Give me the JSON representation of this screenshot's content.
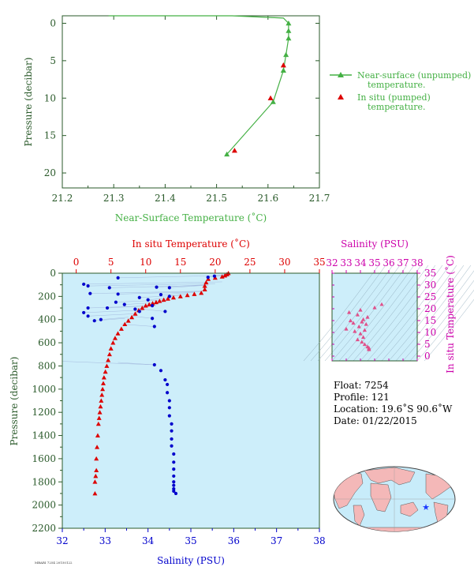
{
  "top_chart": {
    "xlabel": "Near-Surface Temperature (˚C)",
    "ylabel": "Pressure (decibar)",
    "x_ticks": [
      "21.2",
      "21.3",
      "21.4",
      "21.5",
      "21.6",
      "21.7"
    ],
    "y_ticks": [
      "0",
      "5",
      "10",
      "15",
      "20"
    ],
    "legend": {
      "unpumped": [
        "Near-surface (unpumped)",
        "temperature."
      ],
      "pumped": [
        "In situ (pumped)",
        "temperature."
      ]
    },
    "colors": {
      "unpumped": "#44b044",
      "pumped": "#dd0000",
      "axis": "#2a5a2a"
    }
  },
  "main_chart": {
    "top_label": "In situ Temperature (˚C)",
    "bottom_label": "Salinity (PSU)",
    "ylabel": "Pressure (decibar)",
    "temp_ticks": [
      "0",
      "5",
      "10",
      "15",
      "20",
      "25",
      "30",
      "35"
    ],
    "sal_ticks": [
      "32",
      "33",
      "34",
      "35",
      "36",
      "37",
      "38"
    ],
    "pres_ticks": [
      "0",
      "200",
      "400",
      "600",
      "800",
      "1000",
      "1200",
      "1400",
      "1600",
      "1800",
      "2000",
      "2200"
    ],
    "colors": {
      "temperature": "#dd0000",
      "salinity": "#0000cc",
      "background": "#cdeefa"
    }
  },
  "ts_chart": {
    "top_label": "Salinity (PSU)",
    "right_label": "In situ Temperature (˚C)",
    "sal_ticks": [
      "32",
      "33",
      "34",
      "35",
      "36",
      "37",
      "38"
    ],
    "temp_ticks": [
      "0",
      "5",
      "10",
      "15",
      "20",
      "25",
      "30",
      "35"
    ],
    "color": "#cc00aa"
  },
  "info": {
    "float": "Float:  7254",
    "profile": "Profile:  121",
    "location": "Location:  19.6˚S  90.6˚W",
    "date": "Date:  01/22/2015"
  },
  "footer_note": "MBARI 7254 20150122",
  "chart_data": [
    {
      "type": "line",
      "series": [
        {
          "name": "Near-surface (unpumped) temperature.",
          "x": [
            21.29,
            21.53,
            21.63,
            21.64,
            21.64,
            21.64,
            21.635,
            21.63,
            21.63,
            21.61,
            21.52
          ],
          "y": [
            -1.0,
            -1.0,
            -0.7,
            0.0,
            1.0,
            2.0,
            4.2,
            6.3,
            6.3,
            10.5,
            17.5
          ]
        },
        {
          "name": "In situ (pumped) temperature.",
          "x": [
            21.63,
            21.605,
            21.535
          ],
          "y": [
            5.6,
            10.0,
            17.0
          ]
        }
      ],
      "xlim": [
        21.2,
        21.7
      ],
      "ylim": [
        22,
        -1
      ],
      "xlabel": "Near-Surface Temperature (˚C)",
      "ylabel": "Pressure (decibar)"
    },
    {
      "type": "scatter",
      "series": [
        {
          "name": "In situ Temperature (˚C)",
          "temperature": [
            21.9,
            21.7,
            21.4,
            21.0,
            20.0,
            19.0,
            18.7,
            18.5,
            18.5,
            18.0,
            17.0,
            16.0,
            15.0,
            14.0,
            13.2,
            12.6,
            12.0,
            11.5,
            11.0,
            10.5,
            10.0,
            9.5,
            9.0,
            8.5,
            8.0,
            7.5,
            7.0,
            6.5,
            6.0,
            5.6,
            5.3,
            5.0,
            4.8,
            4.6,
            4.4,
            4.2,
            4.0,
            3.9,
            3.8,
            3.7,
            3.6,
            3.5,
            3.4,
            3.3,
            3.2,
            3.1,
            3.0,
            2.9,
            2.9,
            2.8,
            2.7,
            2.7
          ],
          "pressure": [
            0,
            10,
            20,
            30,
            40,
            50,
            80,
            110,
            140,
            170,
            180,
            190,
            200,
            210,
            220,
            230,
            240,
            250,
            260,
            270,
            280,
            300,
            320,
            350,
            380,
            410,
            440,
            480,
            520,
            560,
            600,
            650,
            700,
            750,
            800,
            850,
            900,
            950,
            1000,
            1050,
            1100,
            1150,
            1200,
            1250,
            1300,
            1400,
            1500,
            1600,
            1700,
            1750,
            1800,
            1900
          ]
        },
        {
          "name": "Salinity (PSU)",
          "salinity": [
            35.55,
            35.4,
            33.3,
            32.5,
            32.6,
            33.1,
            34.2,
            34.5,
            32.65,
            33.3,
            34.3,
            34.5,
            33.8,
            34.0,
            33.25,
            33.45,
            34.1,
            32.6,
            33.05,
            33.7,
            33.8,
            34.4,
            32.5,
            32.6,
            34.1,
            32.9,
            32.75,
            34.15,
            34.15,
            34.3,
            34.4,
            34.45,
            34.45,
            34.5,
            34.5,
            34.5,
            34.55,
            34.55,
            34.55,
            34.55,
            34.6,
            34.6,
            34.6,
            34.6,
            34.6,
            34.6,
            34.6,
            34.6,
            34.65
          ],
          "pressure": [
            25,
            35,
            40,
            95,
            110,
            125,
            120,
            125,
            175,
            180,
            185,
            200,
            210,
            230,
            250,
            270,
            280,
            300,
            300,
            310,
            330,
            330,
            340,
            370,
            390,
            400,
            410,
            460,
            790,
            840,
            920,
            960,
            1030,
            1100,
            1160,
            1230,
            1300,
            1360,
            1430,
            1490,
            1560,
            1630,
            1690,
            1750,
            1800,
            1830,
            1860,
            1880,
            1900
          ]
        }
      ],
      "ylim": [
        2200,
        0
      ],
      "temp_lim": [
        -2,
        35
      ],
      "sal_lim": [
        32,
        38
      ],
      "xlabel": "Salinity (PSU)",
      "ylabel": "Pressure (decibar)"
    },
    {
      "type": "scatter",
      "series": [
        {
          "name": "T-S",
          "salinity": [
            35.5,
            35.0,
            34.0,
            33.2,
            33.8,
            34.5,
            34.2,
            33.3,
            34.1,
            33.5,
            34.4,
            33.9,
            33.0,
            34.3,
            33.6,
            34.0,
            34.2,
            33.8,
            34.1,
            34.3,
            34.5,
            34.6,
            34.6,
            34.6
          ],
          "temperature": [
            21.9,
            20.5,
            19.5,
            18.5,
            17.5,
            16.5,
            15.5,
            15.0,
            14.5,
            14.0,
            13.5,
            12.5,
            11.5,
            11.0,
            10.5,
            9.5,
            8.0,
            7.0,
            6.0,
            5.0,
            4.0,
            3.5,
            3.0,
            2.8
          ]
        }
      ],
      "xlim": [
        32,
        38
      ],
      "ylim": [
        -2,
        35
      ],
      "xlabel": "Salinity (PSU)",
      "ylabel": "In situ Temperature (˚C)"
    }
  ]
}
